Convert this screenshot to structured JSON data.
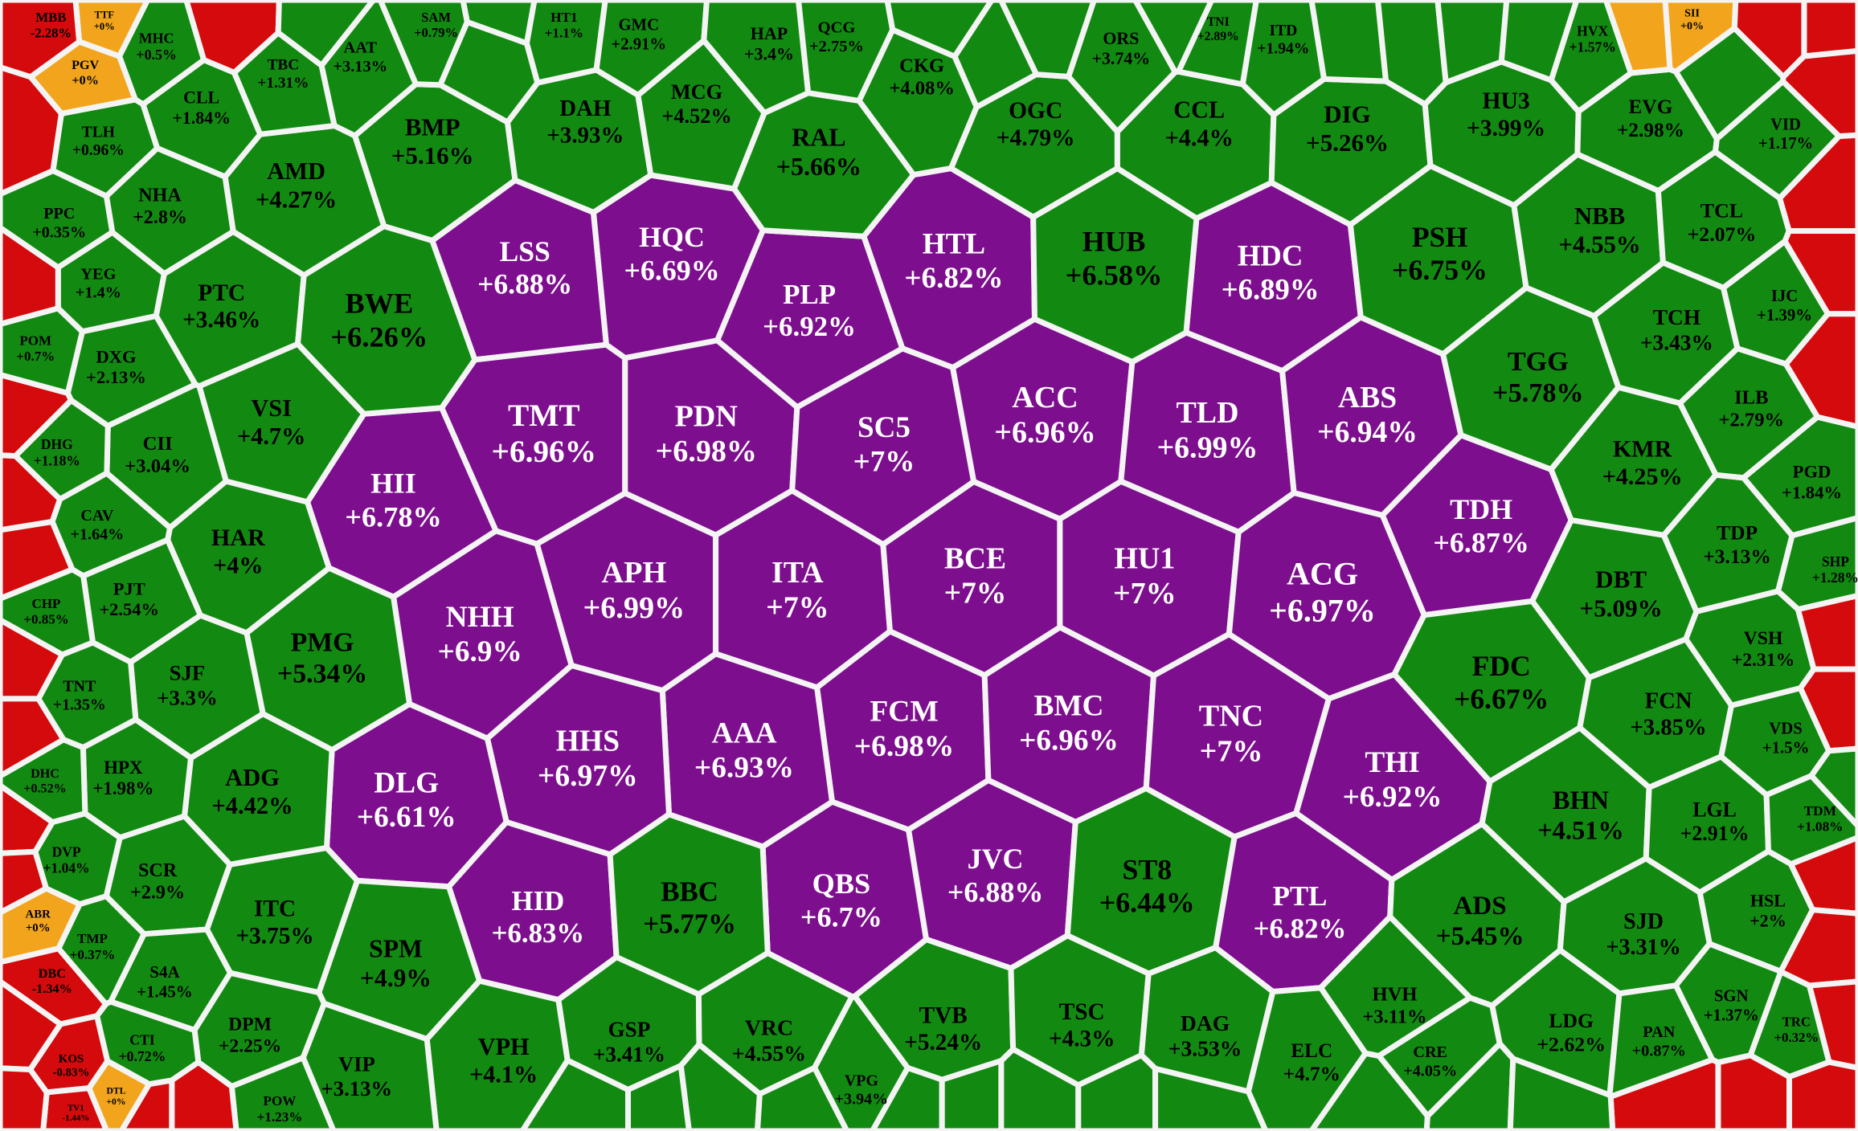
{
  "groups": [
    {
      "color": "#7d0f8e",
      "text_color": "#ffffff",
      "cells": [
        {
          "ticker": "LSS",
          "change": "+6.88%"
        },
        {
          "ticker": "HQC",
          "change": "+6.69%"
        },
        {
          "ticker": "PLP",
          "change": "+6.92%"
        },
        {
          "ticker": "HTL",
          "change": "+6.82%"
        },
        {
          "ticker": "HDC",
          "change": "+6.89%"
        },
        {
          "ticker": "TMT",
          "change": "+6.96%"
        },
        {
          "ticker": "PDN",
          "change": "+6.98%"
        },
        {
          "ticker": "SC5",
          "change": "+7%"
        },
        {
          "ticker": "ACC",
          "change": "+6.96%"
        },
        {
          "ticker": "TLD",
          "change": "+6.99%"
        },
        {
          "ticker": "ABS",
          "change": "+6.94%"
        },
        {
          "ticker": "HII",
          "change": "+6.78%"
        },
        {
          "ticker": "TDH",
          "change": "+6.87%"
        },
        {
          "ticker": "APH",
          "change": "+6.99%"
        },
        {
          "ticker": "ITA",
          "change": "+7%"
        },
        {
          "ticker": "BCE",
          "change": "+7%"
        },
        {
          "ticker": "HU1",
          "change": "+7%"
        },
        {
          "ticker": "ACG",
          "change": "+6.97%"
        },
        {
          "ticker": "NHH",
          "change": "+6.9%"
        },
        {
          "ticker": "FCM",
          "change": "+6.98%"
        },
        {
          "ticker": "BMC",
          "change": "+6.96%"
        },
        {
          "ticker": "TNC",
          "change": "+7%"
        },
        {
          "ticker": "AAA",
          "change": "+6.93%"
        },
        {
          "ticker": "HHS",
          "change": "+6.97%"
        },
        {
          "ticker": "DLG",
          "change": "+6.61%"
        },
        {
          "ticker": "THI",
          "change": "+6.92%"
        },
        {
          "ticker": "QBS",
          "change": "+6.7%"
        },
        {
          "ticker": "JVC",
          "change": "+6.88%"
        },
        {
          "ticker": "PTL",
          "change": "+6.82%"
        },
        {
          "ticker": "HID",
          "change": "+6.83%"
        }
      ]
    },
    {
      "color": "#128a12",
      "text_color": "#000000",
      "cells": [
        {
          "ticker": "BMP",
          "change": "+5.16%"
        },
        {
          "ticker": "DAH",
          "change": "+3.93%"
        },
        {
          "ticker": "MCG",
          "change": "+4.52%"
        },
        {
          "ticker": "RAL",
          "change": "+5.66%"
        },
        {
          "ticker": "CKG",
          "change": "+4.08%"
        },
        {
          "ticker": "OGC",
          "change": "+4.79%"
        },
        {
          "ticker": "CCL",
          "change": "+4.4%"
        },
        {
          "ticker": "DIG",
          "change": "+5.26%"
        },
        {
          "ticker": "HU3",
          "change": "+3.99%"
        },
        {
          "ticker": "EVG",
          "change": "+2.98%"
        },
        {
          "ticker": "AMD",
          "change": "+4.27%"
        },
        {
          "ticker": "CLL",
          "change": "+1.84%"
        },
        {
          "ticker": "NHA",
          "change": "+2.8%"
        },
        {
          "ticker": "TBC",
          "change": "+1.31%"
        },
        {
          "ticker": "AAT",
          "change": "+3.13%"
        },
        {
          "ticker": "MHC",
          "change": "+0.5%"
        },
        {
          "ticker": "HT1",
          "change": "+1.1%"
        },
        {
          "ticker": "GMC",
          "change": "+2.91%"
        },
        {
          "ticker": "HAP",
          "change": "+3.4%"
        },
        {
          "ticker": "QCG",
          "change": "+2.75%"
        },
        {
          "ticker": "ORS",
          "change": "+3.74%"
        },
        {
          "ticker": "TNI",
          "change": "+2.89%"
        },
        {
          "ticker": "ITD",
          "change": "+1.94%"
        },
        {
          "ticker": "HVX",
          "change": "+1.57%"
        },
        {
          "ticker": "TLH",
          "change": "+0.96%"
        },
        {
          "ticker": "PPC",
          "change": "+0.35%"
        },
        {
          "ticker": "YEG",
          "change": "+1.4%"
        },
        {
          "ticker": "PTC",
          "change": "+3.46%"
        },
        {
          "ticker": "BWE",
          "change": "+6.26%"
        },
        {
          "ticker": "HUB",
          "change": "+6.58%"
        },
        {
          "ticker": "PSH",
          "change": "+6.75%"
        },
        {
          "ticker": "NBB",
          "change": "+4.55%"
        },
        {
          "ticker": "TCL",
          "change": "+2.07%"
        },
        {
          "ticker": "IJC",
          "change": "+1.39%"
        },
        {
          "ticker": "TCH",
          "change": "+3.43%"
        },
        {
          "ticker": "TGG",
          "change": "+5.78%"
        },
        {
          "ticker": "DXG",
          "change": "+2.13%"
        },
        {
          "ticker": "POM",
          "change": "+0.7%"
        },
        {
          "ticker": "VSI",
          "change": "+4.7%"
        },
        {
          "ticker": "CII",
          "change": "+3.04%"
        },
        {
          "ticker": "DHG",
          "change": "+1.18%"
        },
        {
          "ticker": "ILB",
          "change": "+2.79%"
        },
        {
          "ticker": "KMR",
          "change": "+4.25%"
        },
        {
          "ticker": "PGD",
          "change": "+1.84%"
        },
        {
          "ticker": "HAR",
          "change": "+4%"
        },
        {
          "ticker": "CAV",
          "change": "+1.64%"
        },
        {
          "ticker": "PJT",
          "change": "+2.54%"
        },
        {
          "ticker": "TDP",
          "change": "+3.13%"
        },
        {
          "ticker": "SHP",
          "change": "+1.28%"
        },
        {
          "ticker": "DBT",
          "change": "+5.09%"
        },
        {
          "ticker": "PMG",
          "change": "+5.34%"
        },
        {
          "ticker": "SJF",
          "change": "+3.3%"
        },
        {
          "ticker": "TNT",
          "change": "+1.35%"
        },
        {
          "ticker": "CHP",
          "change": "+0.85%"
        },
        {
          "ticker": "FDC",
          "change": "+6.67%"
        },
        {
          "ticker": "VSH",
          "change": "+2.31%"
        },
        {
          "ticker": "FCN",
          "change": "+3.85%"
        },
        {
          "ticker": "VDS",
          "change": "+1.5%"
        },
        {
          "ticker": "HPX",
          "change": "+1.98%"
        },
        {
          "ticker": "DHC",
          "change": "+0.52%"
        },
        {
          "ticker": "ADG",
          "change": "+4.42%"
        },
        {
          "ticker": "BHN",
          "change": "+4.51%"
        },
        {
          "ticker": "LGL",
          "change": "+2.91%"
        },
        {
          "ticker": "TDM",
          "change": "+1.08%"
        },
        {
          "ticker": "SCR",
          "change": "+2.9%"
        },
        {
          "ticker": "DVP",
          "change": "+1.04%"
        },
        {
          "ticker": "ITC",
          "change": "+3.75%"
        },
        {
          "ticker": "ST8",
          "change": "+6.44%"
        },
        {
          "ticker": "ADS",
          "change": "+5.45%"
        },
        {
          "ticker": "HSL",
          "change": "+2%"
        },
        {
          "ticker": "SJD",
          "change": "+3.31%"
        },
        {
          "ticker": "BBC",
          "change": "+5.77%"
        },
        {
          "ticker": "SPM",
          "change": "+4.9%"
        },
        {
          "ticker": "S4A",
          "change": "+1.45%"
        },
        {
          "ticker": "TMP",
          "change": "+0.37%"
        },
        {
          "ticker": "HVH",
          "change": "+3.11%"
        },
        {
          "ticker": "SGN",
          "change": "+1.37%"
        },
        {
          "ticker": "DPM",
          "change": "+2.25%"
        },
        {
          "ticker": "TVB",
          "change": "+5.24%"
        },
        {
          "ticker": "TSC",
          "change": "+4.3%"
        },
        {
          "ticker": "DAG",
          "change": "+3.53%"
        },
        {
          "ticker": "GSP",
          "change": "+3.41%"
        },
        {
          "ticker": "VRC",
          "change": "+4.55%"
        },
        {
          "ticker": "VPH",
          "change": "+4.1%"
        },
        {
          "ticker": "ELC",
          "change": "+4.7%"
        },
        {
          "ticker": "CRE",
          "change": "+4.05%"
        },
        {
          "ticker": "LDG",
          "change": "+2.62%"
        },
        {
          "ticker": "PAN",
          "change": "+0.87%"
        },
        {
          "ticker": "TRC",
          "change": "+0.32%"
        },
        {
          "ticker": "CTI",
          "change": "+0.72%"
        },
        {
          "ticker": "VIP",
          "change": "+3.13%"
        },
        {
          "ticker": "POW",
          "change": "+1.23%"
        },
        {
          "ticker": "VPG",
          "change": "+3.94%"
        },
        {
          "ticker": "VID",
          "change": "+1.17%"
        },
        {
          "ticker": "SAM",
          "change": "+0.79%"
        }
      ]
    },
    {
      "color": "#f2a51c",
      "text_color": "#000000",
      "cells": [
        {
          "ticker": "TTF",
          "change": "+0%"
        },
        {
          "ticker": "PGV",
          "change": "+0%"
        },
        {
          "ticker": "ABR",
          "change": "+0%"
        },
        {
          "ticker": "DTL",
          "change": "+0%"
        },
        {
          "ticker": "SII",
          "change": "+0%"
        }
      ]
    },
    {
      "color": "#d40a0c",
      "text_color": "#000000",
      "cells": [
        {
          "ticker": "MBB",
          "change": "-2.28%"
        },
        {
          "ticker": "DBC",
          "change": "-1.34%"
        },
        {
          "ticker": "KOS",
          "change": "-0.83%"
        },
        {
          "ticker": "TV1",
          "change": "-1.44%"
        }
      ]
    }
  ]
}
